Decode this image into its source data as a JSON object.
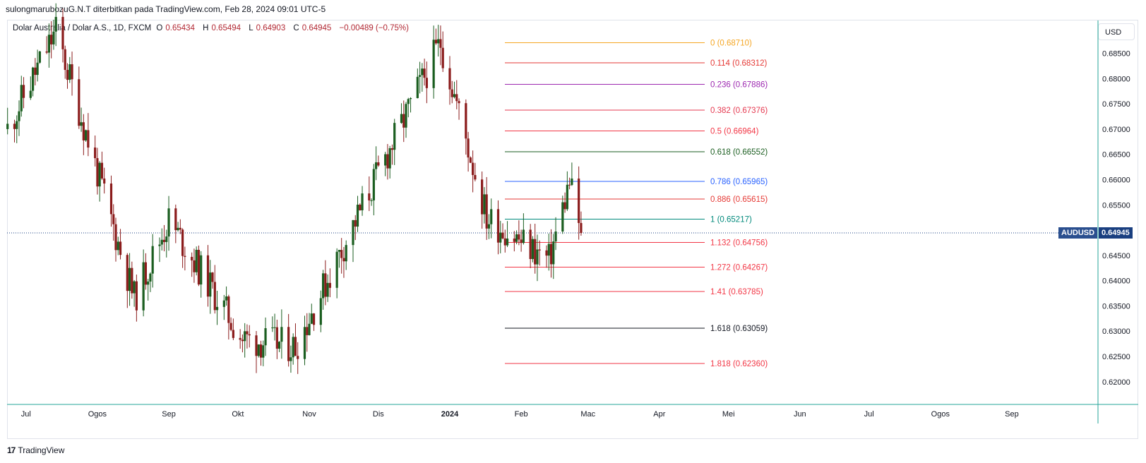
{
  "header": {
    "publisher_line": "sulongmarubozuG.N.T diterbitkan pada TradingView.com, Feb 28, 2024 09:01 UTC-5"
  },
  "symbol": {
    "name": "Dolar Australia / Dolar A.S., 1D, FXCM",
    "open_label": "O",
    "open": "0.65434",
    "high_label": "H",
    "high": "0.65494",
    "low_label": "L",
    "low": "0.64903",
    "close_label": "C",
    "close": "0.64945",
    "change": "−0.00489 (−0.75%)"
  },
  "currency_button": "USD",
  "price_tag": {
    "ticker": "AUDUSD",
    "price": "0.64945",
    "ticker_bg": "#2a4f8f",
    "price_bg": "#1a3f80"
  },
  "footer": {
    "brand": "TradingView",
    "logo": "17"
  },
  "chart_data": {
    "type": "candlestick",
    "ylim": [
      0.6155,
      0.6915
    ],
    "y_ticks": [
      0.62,
      0.625,
      0.63,
      0.635,
      0.64,
      0.645,
      0.65,
      0.655,
      0.66,
      0.665,
      0.67,
      0.675,
      0.68,
      0.685
    ],
    "y_tick_labels": [
      "0.62000",
      "0.62500",
      "0.63000",
      "0.63500",
      "0.64000",
      "0.64500",
      "0.65000",
      "0.65500",
      "0.66000",
      "0.66500",
      "0.67000",
      "0.67500",
      "0.68000",
      "0.68500"
    ],
    "x_labels": [
      "Jul",
      "Ogos",
      "Sep",
      "Okt",
      "Nov",
      "Dis",
      "2024",
      "Feb",
      "Mac",
      "Apr",
      "Mei",
      "Jun",
      "Jul",
      "Ogos",
      "Sep"
    ],
    "x_labels_bold": [
      false,
      false,
      false,
      false,
      false,
      false,
      true,
      false,
      false,
      false,
      false,
      false,
      false,
      false,
      false
    ],
    "last_price": 0.64945,
    "up_color": "#1b5e20",
    "down_color": "#8b1c1c",
    "key_swings": [
      {
        "date": "2023-06-23",
        "price": 0.67
      },
      {
        "date": "2023-07-14",
        "price": 0.6895
      },
      {
        "date": "2023-08-17",
        "price": 0.6365
      },
      {
        "date": "2023-09-01",
        "price": 0.652
      },
      {
        "date": "2023-10-03",
        "price": 0.6285
      },
      {
        "date": "2023-10-26",
        "price": 0.627
      },
      {
        "date": "2023-12-28",
        "price": 0.6871
      },
      {
        "date": "2024-01-17",
        "price": 0.6525
      },
      {
        "date": "2024-02-13",
        "price": 0.644
      },
      {
        "date": "2024-02-22",
        "price": 0.6595
      },
      {
        "date": "2024-02-27",
        "price": 0.64945
      }
    ],
    "fib_levels": [
      {
        "label": "0 (0.68710)",
        "price": 0.6871,
        "color": "#f5a623"
      },
      {
        "label": "0.114 (0.68312)",
        "price": 0.68312,
        "color": "#e53935"
      },
      {
        "label": "0.236 (0.67886)",
        "price": 0.67886,
        "color": "#9c27b0"
      },
      {
        "label": "0.382 (0.67376)",
        "price": 0.67376,
        "color": "#e53950"
      },
      {
        "label": "0.5 (0.66964)",
        "price": 0.66964,
        "color": "#f23645"
      },
      {
        "label": "0.618 (0.66552)",
        "price": 0.66552,
        "color": "#1b5e20"
      },
      {
        "label": "0.786 (0.65965)",
        "price": 0.65965,
        "color": "#2962ff"
      },
      {
        "label": "0.886 (0.65615)",
        "price": 0.65615,
        "color": "#e53935"
      },
      {
        "label": "1 (0.65217)",
        "price": 0.65217,
        "color": "#00897b"
      },
      {
        "label": "1.132 (0.64756)",
        "price": 0.64756,
        "color": "#f23645"
      },
      {
        "label": "1.272 (0.64267)",
        "price": 0.64267,
        "color": "#f23645"
      },
      {
        "label": "1.41 (0.63785)",
        "price": 0.63785,
        "color": "#f23645"
      },
      {
        "label": "1.618 (0.63059)",
        "price": 0.63059,
        "color": "#131722"
      },
      {
        "label": "1.818 (0.62360)",
        "price": 0.6236,
        "color": "#f23645"
      }
    ]
  }
}
